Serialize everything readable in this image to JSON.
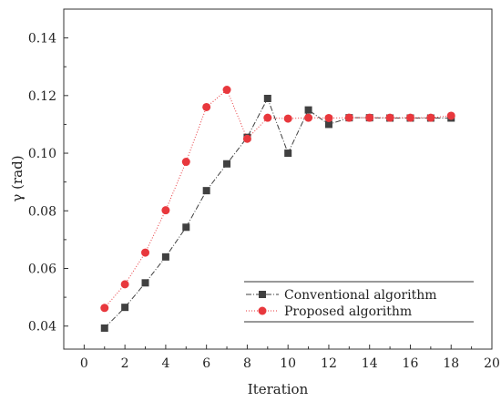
{
  "chart_data": {
    "type": "line",
    "xlabel": "Iteration",
    "ylabel": "γ (rad)",
    "xlim": [
      -1,
      20
    ],
    "ylim": [
      0.032,
      0.15
    ],
    "xticks": [
      "0",
      "2",
      "4",
      "6",
      "8",
      "10",
      "12",
      "14",
      "16",
      "18",
      "20"
    ],
    "yticks": [
      "0.04",
      "0.06",
      "0.08",
      "0.10",
      "0.12",
      "0.14"
    ],
    "x": [
      1,
      2,
      3,
      4,
      5,
      6,
      7,
      8,
      9,
      10,
      11,
      12,
      13,
      14,
      15,
      16,
      17,
      18
    ],
    "legend_position": "bottom-right",
    "grid": false,
    "series": [
      {
        "name": "Conventional algorithm",
        "color": "#404040",
        "marker": "square",
        "line_style": "dash-dot",
        "values": [
          0.0393,
          0.0465,
          0.055,
          0.064,
          0.0743,
          0.087,
          0.0963,
          0.1055,
          0.119,
          0.1,
          0.115,
          0.11,
          0.1123,
          0.1123,
          0.1122,
          0.1122,
          0.1122,
          0.1122
        ]
      },
      {
        "name": "Proposed algorithm",
        "color": "#e8383d",
        "marker": "circle",
        "line_style": "dotted",
        "values": [
          0.0463,
          0.0545,
          0.0655,
          0.0802,
          0.097,
          0.116,
          0.122,
          0.105,
          0.1123,
          0.112,
          0.1123,
          0.1122,
          0.1123,
          0.1123,
          0.1123,
          0.1123,
          0.1123,
          0.113
        ]
      }
    ]
  }
}
